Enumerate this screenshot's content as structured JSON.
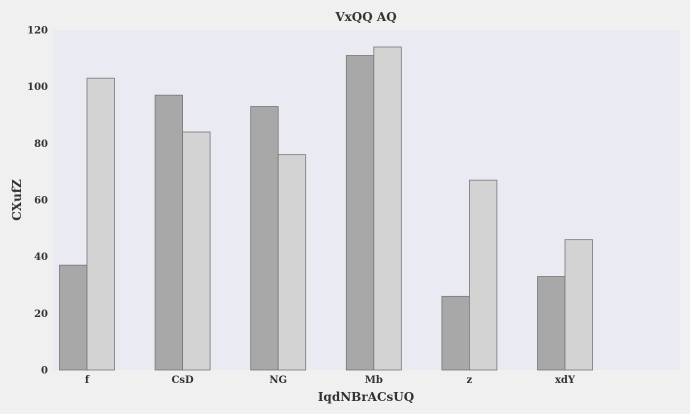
{
  "chart_data": {
    "type": "bar",
    "title": "VxQQ AQ",
    "xlabel": "IqdNBrACsUQ",
    "ylabel": "CXufZ",
    "categories": [
      "f",
      "CsD",
      "NG",
      "Mb",
      "z",
      "xdY"
    ],
    "series": [
      {
        "values": [
          37,
          97,
          93,
          111,
          26,
          33
        ],
        "color": "#a8a8a8"
      },
      {
        "values": [
          103,
          84,
          76,
          114,
          67,
          46
        ],
        "color": "#d3d3d3"
      }
    ],
    "ylim": [
      0,
      120
    ],
    "yticks": [
      "0",
      "20",
      "40",
      "60",
      "80",
      "100",
      "120"
    ],
    "grid": false,
    "legend": "none",
    "plot_background": "#eaeaf2",
    "page_background": "#f0f0f0"
  }
}
